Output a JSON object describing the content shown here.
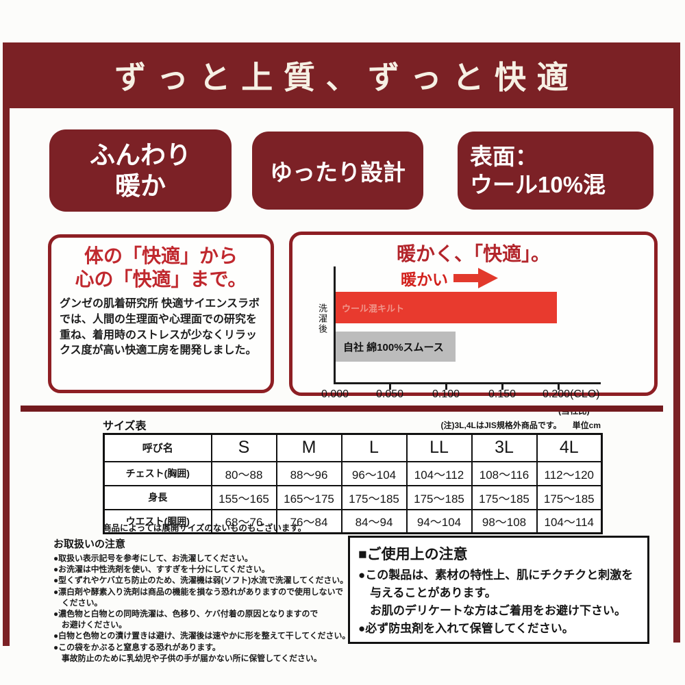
{
  "header": {
    "title": "ずっと上質、ずっと快適"
  },
  "badges": [
    {
      "lines": [
        "ふんわり",
        "暖か"
      ]
    },
    {
      "lines": [
        "ゆったり設計"
      ]
    },
    {
      "lines": [
        "表面：",
        "ウール10%混"
      ]
    }
  ],
  "comfort_box": {
    "title_lines": [
      "体の「快適」から",
      "心の「快適」まで。"
    ],
    "body": "グンゼの肌着研究所 快適サイエンスラボでは、人間の生理面や心理面での研究を重ね、着用時のストレスが少なくリラックス度が高い快適工房を開発しました。"
  },
  "chart_data": {
    "type": "bar",
    "orientation": "horizontal",
    "title": "暖かく、「快適」。",
    "annotation": "暖かい",
    "ylabel": "洗濯後",
    "categories": [
      "ウール混キルト",
      "自社 綿100%スムース"
    ],
    "values": [
      0.197,
      0.107
    ],
    "bar_colors": [
      "#e83a2e",
      "#bcbcbc"
    ],
    "xlim": [
      0,
      0.21
    ],
    "xticks": [
      0.0,
      0.05,
      0.1,
      0.15,
      0.2
    ],
    "xtick_labels": [
      "0.000",
      "0.050",
      "0.100",
      "0.150",
      "0.200(CLO)"
    ],
    "footnote": "(当社比)",
    "grid": false,
    "legend": "labels-on-bars"
  },
  "size_table": {
    "title": "サイズ表",
    "note": "(注)3L,4LはJIS規格外商品です。",
    "unit": "単位cm",
    "header": [
      "呼び名",
      "S",
      "M",
      "L",
      "LL",
      "3L",
      "4L"
    ],
    "rows": [
      {
        "label": "チェスト(胸囲)",
        "values": [
          "80〜88",
          "88〜96",
          "96〜104",
          "104〜112",
          "108〜116",
          "112〜120"
        ]
      },
      {
        "label": "身長",
        "values": [
          "155〜165",
          "165〜175",
          "175〜185",
          "175〜185",
          "175〜185",
          "175〜185"
        ]
      },
      {
        "label": "ウエスト(胴囲)",
        "values": [
          "68〜76",
          "76〜84",
          "84〜94",
          "94〜104",
          "98〜108",
          "104〜114"
        ]
      }
    ],
    "footnote": "商品によっては展開サイズのないものもございます。"
  },
  "care_notes": {
    "title": "お取扱いの注意",
    "lines": [
      "●取扱い表示記号を参考にして、お洗濯してください。",
      "●お洗濯は中性洗剤を使い、すすぎを十分にしてください。",
      "●型くずれやケバ立ち防止のため、洗濯機は弱(ソフト)水流で洗濯してください。",
      "●漂白剤や酵素入り洗剤は商品の機能を損なう恐れがありますので使用しないで",
      "　ください。",
      "●濃色物と白物との同時洗濯は、色移り、ケバ付着の原因となりますので",
      "　お避けください。",
      "●白物と色物との漬け置きは避け、洗濯後は速やかに形を整えて干してください。",
      "●この袋をかぶると窒息する恐れがあります。",
      "　事故防止のために乳幼児や子供の手が届かない所に保管してください。"
    ]
  },
  "usage_box": {
    "title": "■ご使用上の注意",
    "lines": [
      "●この製品は、素材の特性上、肌にチクチクと刺激を",
      "　与えることがあります。",
      "　お肌のデリケートな方はご着用をお避け下さい。",
      "●必ず防虫剤を入れて保管してください。"
    ]
  },
  "colors": {
    "maroon": "#7b2125",
    "box_border_red": "#8e1f24",
    "heading_red": "#c0282e",
    "bar_red": "#e83a2e",
    "bar_gray": "#bcbcbc",
    "divider": "#731a1e"
  }
}
